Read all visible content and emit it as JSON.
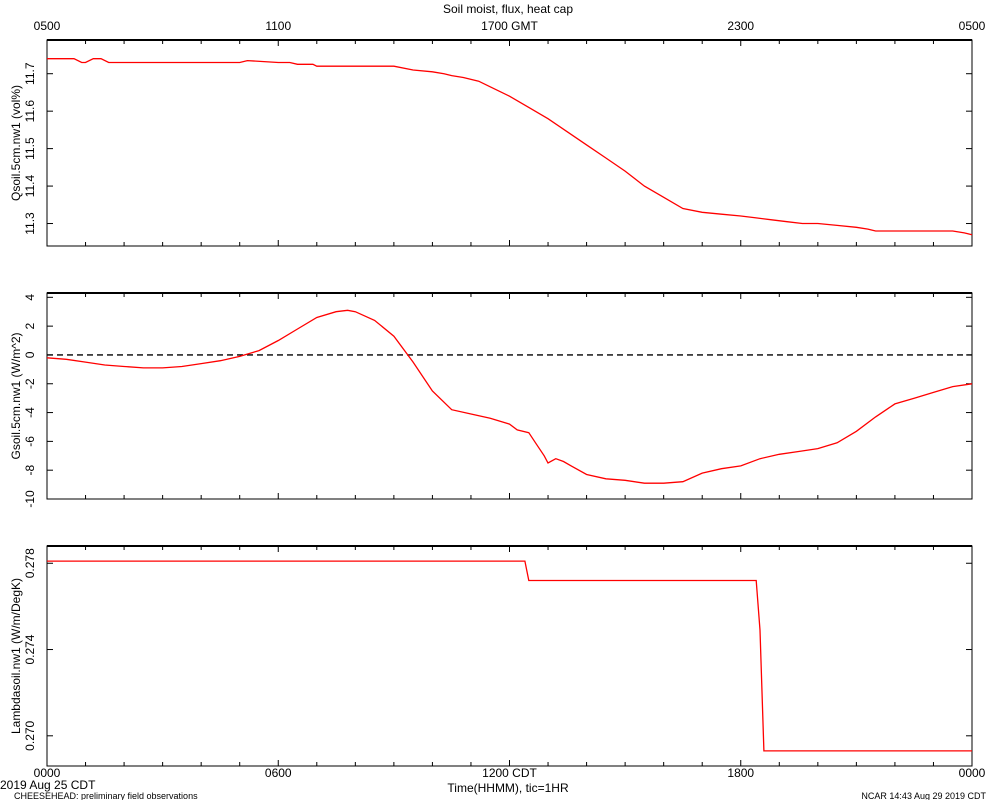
{
  "chart_data": {
    "type": "line",
    "title": "Soil moist, flux, heat cap",
    "colors": {
      "series": "#ff0000",
      "zero_line": "#000000",
      "frame": "#000000"
    },
    "top_axis": {
      "ticks": [
        0,
        6,
        12,
        18,
        24
      ],
      "labels": [
        "0500",
        "1100",
        "1700 GMT",
        "2300",
        "0500"
      ]
    },
    "bottom_axis": {
      "ticks": [
        0,
        6,
        12,
        18,
        24
      ],
      "labels": [
        "0000",
        "0600",
        "1200 CDT",
        "1800",
        "0000"
      ],
      "xlabel": "Time(HHMM), tic=1HR"
    },
    "xlim": [
      0,
      24
    ],
    "panels": [
      {
        "ylabel": "Qsoil.5cm.nw1 (vol%)",
        "ylim": [
          11.24,
          11.79
        ],
        "yticks": [
          11.3,
          11.4,
          11.5,
          11.6,
          11.7
        ],
        "ytick_labels": [
          "11.3",
          "11.4",
          "11.5",
          "11.6",
          "11.7"
        ],
        "zero_line": false,
        "series": [
          {
            "x": [
              0,
              0.4,
              0.7,
              0.9,
              1.0,
              1.2,
              1.4,
              1.6,
              2.0,
              2.5,
              3.0,
              4.0,
              5.0,
              5.2,
              6.0,
              6.3,
              6.5,
              6.9,
              7.0,
              7.5,
              8.0,
              9.0,
              9.5,
              10.0,
              10.3,
              10.5,
              10.8,
              11.2,
              11.5,
              12.0,
              12.5,
              13.0,
              13.5,
              14.0,
              14.5,
              15.0,
              15.5,
              16.0,
              16.5,
              17.0,
              17.5,
              18.0,
              18.4,
              18.8,
              19.2,
              19.6,
              20.0,
              20.5,
              21.0,
              21.3,
              21.5,
              21.8,
              22.0,
              22.3,
              22.6,
              23.0,
              23.5,
              23.8,
              24.0
            ],
            "values": [
              11.74,
              11.74,
              11.74,
              11.73,
              11.73,
              11.74,
              11.74,
              11.73,
              11.73,
              11.73,
              11.73,
              11.73,
              11.73,
              11.735,
              11.73,
              11.73,
              11.725,
              11.725,
              11.72,
              11.72,
              11.72,
              11.72,
              11.71,
              11.705,
              11.7,
              11.695,
              11.69,
              11.68,
              11.665,
              11.64,
              11.61,
              11.58,
              11.545,
              11.51,
              11.475,
              11.44,
              11.4,
              11.37,
              11.34,
              11.33,
              11.325,
              11.32,
              11.315,
              11.31,
              11.305,
              11.3,
              11.3,
              11.295,
              11.29,
              11.285,
              11.28,
              11.28,
              11.28,
              11.28,
              11.28,
              11.28,
              11.28,
              11.275,
              11.27
            ]
          }
        ]
      },
      {
        "ylabel": "Gsoil.5cm.nw1 (W/m^2)",
        "ylim": [
          -10,
          4.3
        ],
        "yticks": [
          -10,
          -8,
          -6,
          -4,
          -2,
          0,
          2,
          4
        ],
        "ytick_labels": [
          "-10",
          "-8",
          "-6",
          "-4",
          "-2",
          "0",
          "2",
          "4"
        ],
        "zero_line": true,
        "series": [
          {
            "x": [
              0,
              0.5,
              1.0,
              1.5,
              2.0,
              2.5,
              3.0,
              3.5,
              4.0,
              4.5,
              5.0,
              5.5,
              6.0,
              6.5,
              7.0,
              7.5,
              7.8,
              8.0,
              8.5,
              9.0,
              9.5,
              10.0,
              10.5,
              11.0,
              11.5,
              12.0,
              12.2,
              12.5,
              12.7,
              12.9,
              13.0,
              13.2,
              13.4,
              13.6,
              14.0,
              14.5,
              15.0,
              15.5,
              16.0,
              16.5,
              17.0,
              17.5,
              18.0,
              18.5,
              19.0,
              19.5,
              20.0,
              20.5,
              21.0,
              21.5,
              22.0,
              22.5,
              23.0,
              23.5,
              24.0
            ],
            "values": [
              -0.2,
              -0.3,
              -0.5,
              -0.7,
              -0.8,
              -0.9,
              -0.9,
              -0.8,
              -0.6,
              -0.4,
              -0.1,
              0.3,
              1.0,
              1.8,
              2.6,
              3.0,
              3.1,
              3.0,
              2.4,
              1.3,
              -0.5,
              -2.5,
              -3.8,
              -4.1,
              -4.4,
              -4.8,
              -5.2,
              -5.4,
              -6.2,
              -7.0,
              -7.5,
              -7.2,
              -7.4,
              -7.7,
              -8.3,
              -8.6,
              -8.7,
              -8.9,
              -8.9,
              -8.8,
              -8.2,
              -7.9,
              -7.7,
              -7.2,
              -6.9,
              -6.7,
              -6.5,
              -6.1,
              -5.3,
              -4.3,
              -3.4,
              -3.0,
              -2.6,
              -2.2,
              -2.0
            ]
          }
        ]
      },
      {
        "ylabel": "Lambdasoil.nw1 (W/m/DegK)",
        "ylim": [
          0.2686,
          0.2788
        ],
        "yticks": [
          0.27,
          0.274,
          0.278
        ],
        "ytick_labels": [
          "0.270",
          "0.274",
          "0.278"
        ],
        "zero_line": false,
        "series": [
          {
            "x": [
              0,
              12.4,
              12.5,
              18.4,
              18.5,
              18.6,
              24
            ],
            "values": [
              0.2781,
              0.2781,
              0.2772,
              0.2772,
              0.2749,
              0.2693,
              0.2693
            ]
          }
        ]
      }
    ]
  },
  "footer": {
    "date": "2019 Aug 25 CDT",
    "project": "CHEESEHEAD: preliminary field observations",
    "credit": "NCAR 14:43 Aug 29 2019 CDT"
  }
}
